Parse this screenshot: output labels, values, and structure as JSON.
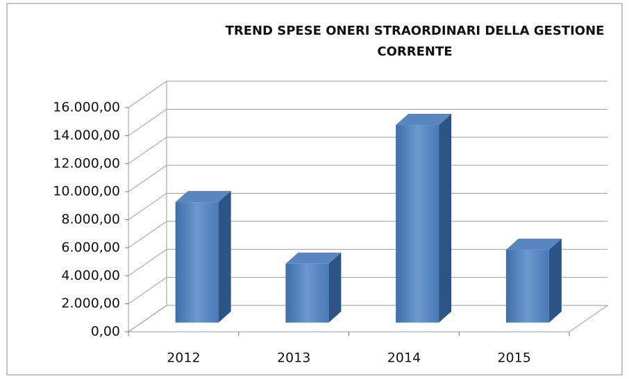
{
  "chart_data": {
    "type": "bar3d",
    "title": "TREND SPESE ONERI STRAORDINARI DELLA GESTIONE CORRENTE",
    "categories": [
      "2012",
      "2013",
      "2014",
      "2015"
    ],
    "values": [
      8600,
      4200,
      14100,
      5200
    ],
    "color": "#4f81bd",
    "ylim": [
      0,
      16000
    ],
    "yticks": [
      {
        "value": 0,
        "label": "0,00"
      },
      {
        "value": 2000,
        "label": "2.000,00"
      },
      {
        "value": 4000,
        "label": "4.000,00"
      },
      {
        "value": 6000,
        "label": "6.000,00"
      },
      {
        "value": 8000,
        "label": "8.000,00"
      },
      {
        "value": 10000,
        "label": "10.000,00"
      },
      {
        "value": 12000,
        "label": "12.000,00"
      },
      {
        "value": 14000,
        "label": "14.000,00"
      },
      {
        "value": 16000,
        "label": "16.000,00"
      }
    ],
    "grid": true
  }
}
